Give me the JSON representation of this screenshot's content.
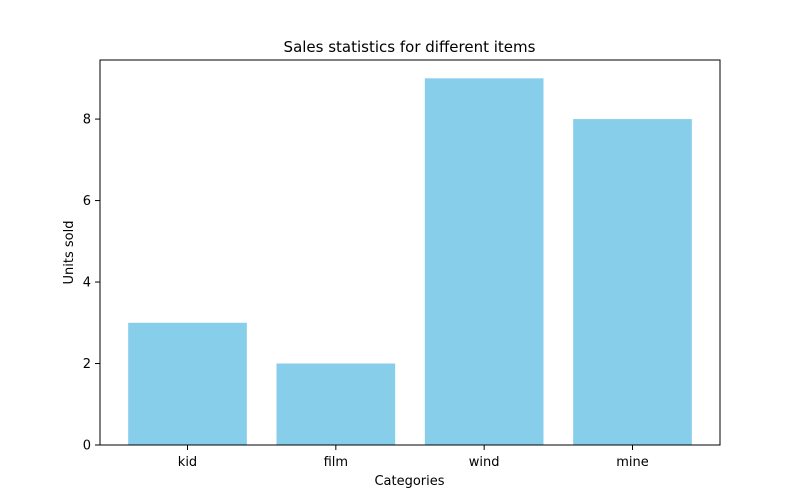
{
  "chart_data": {
    "type": "bar",
    "title": "Sales statistics for different items",
    "xlabel": "Categories",
    "ylabel": "Units sold",
    "categories": [
      "kid",
      "film",
      "wind",
      "mine"
    ],
    "values": [
      3,
      2,
      9,
      8
    ],
    "ylim": [
      0,
      9.45
    ],
    "yticks": [
      0,
      2,
      4,
      6,
      8
    ],
    "bar_color": "#87ceeb",
    "grid": false,
    "legend": "none"
  }
}
